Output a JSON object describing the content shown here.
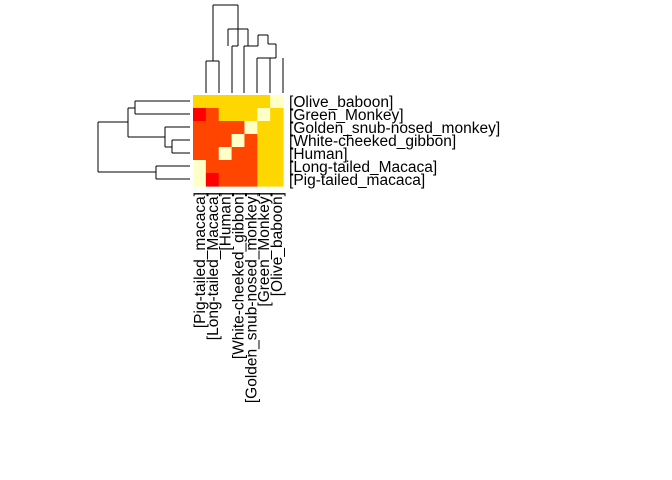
{
  "chart_data": {
    "type": "heatmap",
    "title": "",
    "xlabel": "",
    "ylabel": "",
    "rows": [
      "[Olive_baboon]",
      "[Green_Monkey]",
      "[Golden_snub-nosed_monkey]",
      "[White-cheeked_gibbon]",
      "[Human]",
      "[Long-tailed_Macaca]",
      "[Pig-tailed_macaca]"
    ],
    "columns": [
      "[Pig-tailed_macaca]",
      "[Long-tailed_Macaca]",
      "[Human]",
      "[White-cheeked_gibbon]",
      "[Golden_snub-nosed_monkey]",
      "[Green_Monkey]",
      "[Olive_baboon]"
    ],
    "values": [
      [
        2,
        2,
        2,
        2,
        2,
        2,
        3
      ],
      [
        0,
        1,
        2,
        2,
        2,
        3,
        2
      ],
      [
        1,
        1,
        1,
        1,
        3,
        2,
        2
      ],
      [
        1,
        1,
        1,
        3,
        1,
        2,
        2
      ],
      [
        1,
        1,
        3,
        1,
        1,
        2,
        2
      ],
      [
        3,
        1,
        1,
        1,
        1,
        2,
        2
      ],
      [
        3,
        0,
        1,
        1,
        1,
        2,
        2
      ]
    ],
    "colors": [
      "#ff0000",
      "#ff4500",
      "#ffd700",
      "#ffffc8"
    ],
    "row_dendrogram": true,
    "column_dendrogram": true
  }
}
